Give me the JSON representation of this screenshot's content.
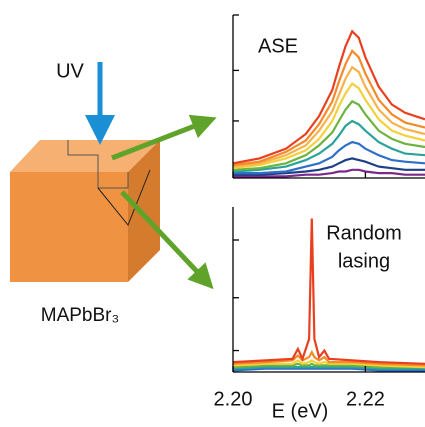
{
  "diagram": {
    "excitation_label": "UV",
    "material_label": "MAPbBr₃"
  },
  "chart_data": [
    {
      "type": "line",
      "annotation": "ASE",
      "x": [
        2.2,
        2.204,
        2.208,
        2.211,
        2.213,
        2.215,
        2.216,
        2.217,
        2.218,
        2.219,
        2.22,
        2.222,
        2.224,
        2.226,
        2.229
      ],
      "series": [
        {
          "color": "#7b2a8a",
          "values": [
            1,
            1,
            1,
            2,
            2,
            3,
            4,
            4,
            5,
            5,
            4,
            3,
            3,
            2,
            2
          ]
        },
        {
          "color": "#1f3f86",
          "values": [
            2,
            2,
            3,
            4,
            5,
            7,
            9,
            11,
            12,
            11,
            10,
            7,
            6,
            5,
            5
          ]
        },
        {
          "color": "#2f6fc8",
          "values": [
            3,
            3,
            4,
            7,
            9,
            13,
            17,
            20,
            22,
            21,
            18,
            14,
            11,
            10,
            9
          ]
        },
        {
          "color": "#2aa39a",
          "values": [
            4,
            5,
            7,
            11,
            15,
            21,
            26,
            32,
            35,
            33,
            29,
            22,
            18,
            15,
            14
          ]
        },
        {
          "color": "#6cb33f",
          "values": [
            5,
            6,
            9,
            14,
            20,
            28,
            35,
            42,
            47,
            45,
            39,
            29,
            24,
            21,
            19
          ]
        },
        {
          "color": "#f2d13a",
          "values": [
            6,
            8,
            12,
            17,
            24,
            35,
            44,
            52,
            58,
            55,
            48,
            36,
            29,
            26,
            23
          ]
        },
        {
          "color": "#f7b24a",
          "values": [
            7,
            9,
            14,
            20,
            29,
            41,
            51,
            61,
            68,
            65,
            56,
            42,
            34,
            30,
            27
          ]
        },
        {
          "color": "#f58a2a",
          "values": [
            8,
            10,
            16,
            23,
            33,
            47,
            59,
            70,
            78,
            74,
            64,
            48,
            39,
            34,
            31
          ]
        },
        {
          "color": "#e8401f",
          "values": [
            9,
            12,
            18,
            27,
            38,
            54,
            68,
            81,
            90,
            86,
            74,
            56,
            45,
            40,
            36
          ]
        }
      ],
      "xlim": [
        2.2,
        2.229
      ],
      "ylim": [
        0,
        100
      ],
      "xticks": [
        2.2,
        2.22
      ],
      "yticks": [
        35,
        66,
        100
      ]
    },
    {
      "type": "line",
      "annotation": [
        "Random",
        "lasing"
      ],
      "xlabel": "E (eV)",
      "x": [
        2.2,
        2.205,
        2.209,
        2.2098,
        2.2105,
        2.2115,
        2.2119,
        2.2123,
        2.213,
        2.2138,
        2.2145,
        2.218,
        2.222,
        2.229
      ],
      "series": [
        {
          "color": "#2f6fc8",
          "values": [
            1,
            2,
            2,
            2,
            2,
            2,
            2,
            2,
            2,
            2,
            2,
            2,
            1,
            1
          ]
        },
        {
          "color": "#2aa39a",
          "values": [
            2,
            3,
            3,
            3,
            3,
            3,
            3,
            3,
            3,
            3,
            3,
            3,
            2,
            2
          ]
        },
        {
          "color": "#6cb33f",
          "values": [
            3,
            4,
            4,
            5,
            4,
            4,
            5,
            4,
            4,
            4,
            4,
            4,
            3,
            3
          ]
        },
        {
          "color": "#f2d13a",
          "values": [
            4,
            5,
            5,
            7,
            5,
            6,
            7,
            6,
            5,
            6,
            5,
            5,
            4,
            3
          ]
        },
        {
          "color": "#f58a2a",
          "values": [
            5,
            6,
            7,
            10,
            7,
            9,
            12,
            9,
            7,
            9,
            6,
            6,
            5,
            4
          ]
        },
        {
          "color": "#e8401f",
          "values": [
            6,
            7,
            8,
            14,
            8,
            20,
            93,
            20,
            9,
            13,
            8,
            7,
            6,
            5
          ]
        }
      ],
      "xlim": [
        2.2,
        2.229
      ],
      "ylim": [
        0,
        100
      ],
      "xticks": [
        {
          "value": 2.2,
          "label": "2.20"
        },
        {
          "value": 2.22,
          "label": "2.22"
        }
      ],
      "yticks": [
        13,
        45,
        80
      ]
    }
  ]
}
